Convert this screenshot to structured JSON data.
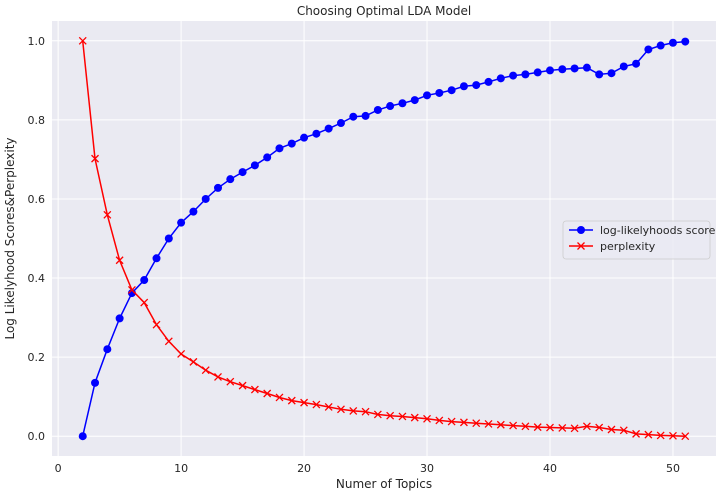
{
  "chart_data": {
    "type": "line",
    "title": "Choosing Optimal LDA Model",
    "xlabel": "Numer of Topics",
    "ylabel": "Log Likelyhood Scores&Perplexity",
    "xlim": [
      -0.5,
      53.5
    ],
    "ylim": [
      -0.05,
      1.05
    ],
    "xticks": [
      0,
      10,
      20,
      30,
      40,
      50
    ],
    "yticks": [
      0.0,
      0.2,
      0.4,
      0.6,
      0.8,
      1.0
    ],
    "xtick_labels": [
      "0",
      "10",
      "20",
      "30",
      "40",
      "50"
    ],
    "ytick_labels": [
      "0.0",
      "0.2",
      "0.4",
      "0.6",
      "0.8",
      "1.0"
    ],
    "grid": true,
    "legend_position": "center-right",
    "background_color": "#eaeaf2",
    "x": [
      2,
      3,
      4,
      5,
      6,
      7,
      8,
      9,
      10,
      11,
      12,
      13,
      14,
      15,
      16,
      17,
      18,
      19,
      20,
      21,
      22,
      23,
      24,
      25,
      26,
      27,
      28,
      29,
      30,
      31,
      32,
      33,
      34,
      35,
      36,
      37,
      38,
      39,
      40,
      41,
      42,
      43,
      44,
      45,
      46,
      47,
      48,
      49,
      50,
      51
    ],
    "series": [
      {
        "name": "log-likelyhoods score",
        "color": "#0000ff",
        "marker": "circle",
        "values": [
          0.0,
          0.135,
          0.22,
          0.298,
          0.362,
          0.395,
          0.45,
          0.5,
          0.54,
          0.568,
          0.6,
          0.628,
          0.65,
          0.668,
          0.685,
          0.705,
          0.728,
          0.74,
          0.755,
          0.765,
          0.778,
          0.792,
          0.808,
          0.81,
          0.825,
          0.835,
          0.842,
          0.85,
          0.862,
          0.868,
          0.875,
          0.885,
          0.888,
          0.896,
          0.905,
          0.912,
          0.915,
          0.92,
          0.925,
          0.928,
          0.93,
          0.932,
          0.915,
          0.918,
          0.935,
          0.942,
          0.978,
          0.988,
          0.995,
          0.998
        ]
      },
      {
        "name": "perplexity",
        "color": "#ff0000",
        "marker": "x",
        "values": [
          1.0,
          0.702,
          0.56,
          0.445,
          0.37,
          0.338,
          0.282,
          0.24,
          0.208,
          0.188,
          0.167,
          0.15,
          0.138,
          0.128,
          0.118,
          0.108,
          0.098,
          0.09,
          0.085,
          0.08,
          0.074,
          0.068,
          0.064,
          0.062,
          0.055,
          0.052,
          0.05,
          0.047,
          0.044,
          0.04,
          0.037,
          0.035,
          0.033,
          0.031,
          0.029,
          0.027,
          0.025,
          0.023,
          0.022,
          0.021,
          0.02,
          0.025,
          0.022,
          0.017,
          0.015,
          0.006,
          0.004,
          0.002,
          0.001,
          0.0
        ]
      }
    ]
  }
}
